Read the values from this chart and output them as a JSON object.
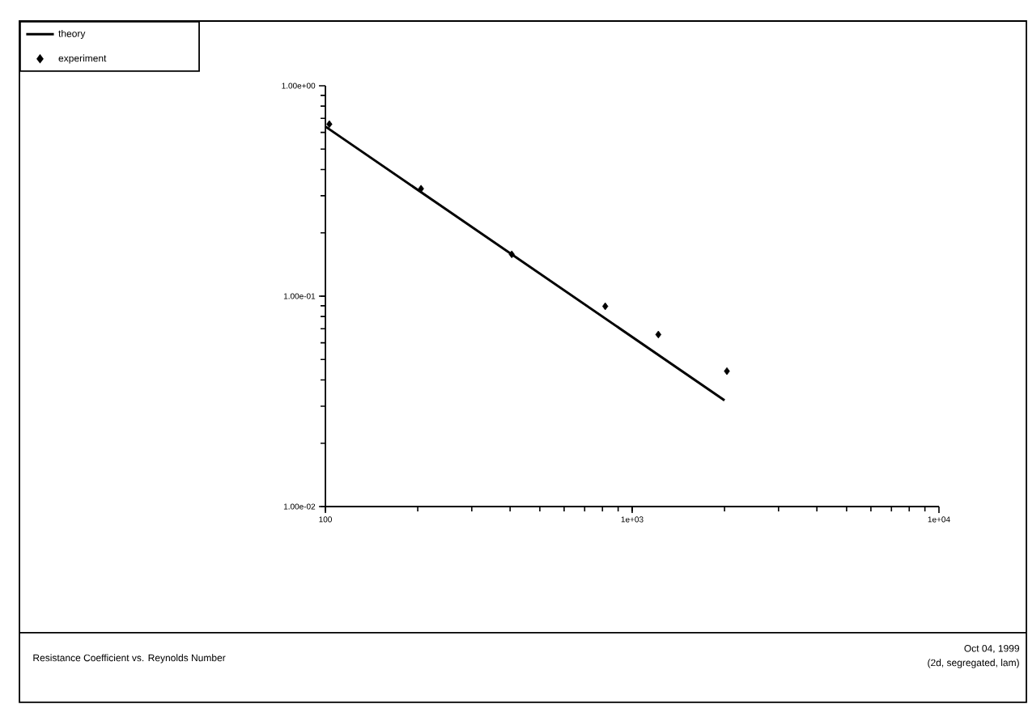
{
  "chart_data": {
    "type": "line",
    "title": "Resistance Coefficient vs. Reynolds Number",
    "annotations": [
      "Oct 04, 1999",
      "(2d, segregated, lam)"
    ],
    "log": "xy",
    "xlim": [
      100,
      10000
    ],
    "ylim": [
      0.01,
      1
    ],
    "xticks": [
      100,
      {
        "value": 1000,
        "label": "1e+03"
      },
      {
        "value": 10000,
        "label": "1e+04"
      }
    ],
    "yticks": [
      {
        "value": 0.01,
        "label": "1.00e-02"
      },
      {
        "value": 0.1,
        "label": "1.00e-01"
      },
      {
        "value": 1,
        "label": "1.00e+00"
      }
    ],
    "legend": "top left",
    "grid": false,
    "series": [
      {
        "name": "theory",
        "color": "#000000",
        "x": [
          100,
          2000
        ],
        "values": [
          0.64,
          0.032
        ]
      },
      {
        "name": "experiment",
        "type": "scatter",
        "color": "#000000",
        "marker": "diamond",
        "x": [
          103,
          205,
          405,
          817,
          1217,
          2036
        ],
        "values": [
          0.657,
          0.324,
          0.158,
          0.0895,
          0.0657,
          0.044
        ]
      }
    ]
  }
}
